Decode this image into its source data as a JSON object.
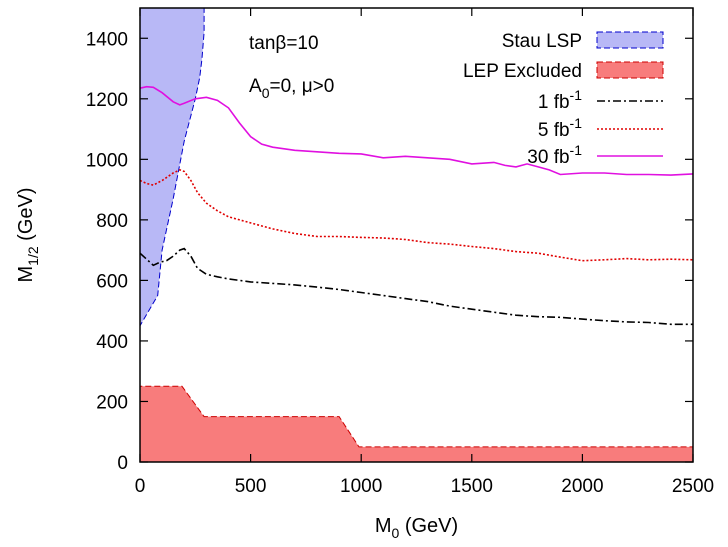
{
  "chart_data": {
    "type": "line",
    "title": "",
    "xlabel": {
      "base": "M",
      "sub": "0",
      "unit": " (GeV)"
    },
    "ylabel": {
      "base": "M",
      "sub": "1/2",
      "unit": " (GeV)"
    },
    "xlim": [
      0,
      2500
    ],
    "ylim": [
      0,
      1500
    ],
    "xticks": [
      0,
      500,
      1000,
      1500,
      2000,
      2500
    ],
    "yticks": [
      0,
      200,
      400,
      600,
      800,
      1000,
      1200,
      1400
    ],
    "grid": false,
    "legend_position": "top-right",
    "annotations": [
      {
        "id": "tanb",
        "text": "tanβ=10"
      },
      {
        "id": "a0",
        "parts": [
          "A",
          "0",
          "=0, μ>0"
        ]
      }
    ],
    "regions": [
      {
        "name": "Stau LSP",
        "color": "#b8b8f6",
        "edge_color": "#0000cc",
        "points": [
          [
            0,
            1500
          ],
          [
            290,
            1500
          ],
          [
            290,
            1420
          ],
          [
            280,
            1330
          ],
          [
            270,
            1270
          ],
          [
            250,
            1200
          ],
          [
            200,
            1060
          ],
          [
            150,
            870
          ],
          [
            100,
            700
          ],
          [
            80,
            550
          ],
          [
            0,
            450
          ]
        ]
      },
      {
        "name": "LEP Excluded",
        "color": "#f87c7c",
        "edge_color": "#cc0000",
        "points": [
          [
            0,
            0
          ],
          [
            0,
            250
          ],
          [
            190,
            250
          ],
          [
            290,
            150
          ],
          [
            900,
            150
          ],
          [
            990,
            50
          ],
          [
            2500,
            50
          ],
          [
            2500,
            0
          ]
        ]
      }
    ],
    "series": [
      {
        "name": "1 fb-1",
        "legend": {
          "base": "1 fb",
          "sup": "-1"
        },
        "color": "#000000",
        "dash": "8,3,2,3",
        "x": [
          0,
          30,
          60,
          90,
          120,
          150,
          180,
          200,
          230,
          260,
          300,
          350,
          400,
          500,
          600,
          700,
          800,
          900,
          1000,
          1100,
          1200,
          1300,
          1400,
          1500,
          1600,
          1700,
          1800,
          1900,
          2000,
          2100,
          2200,
          2300,
          2400,
          2500
        ],
        "y": [
          690,
          670,
          650,
          660,
          665,
          680,
          700,
          705,
          680,
          640,
          620,
          612,
          605,
          595,
          590,
          585,
          578,
          570,
          560,
          550,
          540,
          530,
          515,
          505,
          495,
          485,
          480,
          478,
          472,
          467,
          463,
          461,
          455,
          455
        ]
      },
      {
        "name": "5 fb-1",
        "legend": {
          "base": "5 fb",
          "sup": "-1"
        },
        "color": "#e00000",
        "dash": "2,2",
        "x": [
          0,
          30,
          60,
          100,
          150,
          180,
          200,
          230,
          260,
          300,
          350,
          400,
          500,
          600,
          700,
          800,
          900,
          1000,
          1100,
          1200,
          1300,
          1400,
          1500,
          1600,
          1700,
          1800,
          1900,
          2000,
          2100,
          2200,
          2300,
          2400,
          2500
        ],
        "y": [
          930,
          920,
          915,
          930,
          955,
          965,
          960,
          930,
          890,
          855,
          830,
          810,
          790,
          770,
          755,
          745,
          745,
          742,
          740,
          735,
          725,
          720,
          712,
          705,
          695,
          690,
          677,
          665,
          668,
          672,
          668,
          670,
          668
        ]
      },
      {
        "name": "30 fb-1",
        "legend": {
          "base": "30 fb",
          "sup": "-1"
        },
        "color": "#e010e0",
        "dash": "",
        "x": [
          0,
          30,
          60,
          100,
          150,
          180,
          200,
          250,
          300,
          350,
          400,
          450,
          500,
          550,
          600,
          700,
          800,
          900,
          1000,
          1100,
          1200,
          1300,
          1400,
          1500,
          1600,
          1650,
          1700,
          1750,
          1800,
          1850,
          1900,
          2000,
          2100,
          2200,
          2300,
          2400,
          2500
        ],
        "y": [
          1235,
          1240,
          1238,
          1220,
          1190,
          1180,
          1185,
          1200,
          1205,
          1195,
          1170,
          1120,
          1075,
          1050,
          1040,
          1030,
          1025,
          1020,
          1018,
          1005,
          1010,
          1005,
          1000,
          985,
          990,
          980,
          975,
          985,
          975,
          965,
          950,
          955,
          955,
          950,
          950,
          948,
          952
        ]
      }
    ]
  }
}
